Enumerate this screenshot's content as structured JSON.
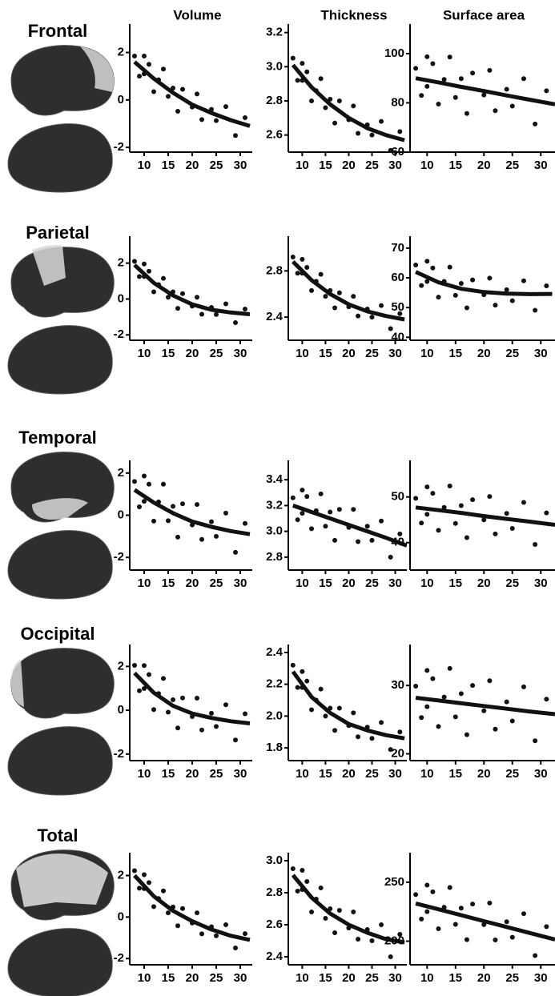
{
  "column_titles": [
    "Volume",
    "Thickness",
    "Surface area"
  ],
  "row_titles": [
    "Frontal",
    "Parietal",
    "Temporal",
    "Occipital",
    "Total"
  ],
  "chart_data": [
    {
      "type": "scatter",
      "color": "#111111",
      "xlim": [
        7,
        32.5
      ],
      "xticks": [
        10,
        15,
        20,
        25,
        30
      ],
      "ylim": [
        -2.2,
        3.2
      ],
      "yticks": [
        -2,
        0,
        2
      ],
      "x": [
        8,
        9,
        10,
        10,
        11,
        12,
        13,
        14,
        15,
        16,
        17,
        18,
        20,
        21,
        22,
        24,
        25,
        27,
        29,
        31
      ],
      "values": [
        1.85,
        1.0,
        1.85,
        1.1,
        1.5,
        0.35,
        0.85,
        1.3,
        0.15,
        0.5,
        -0.48,
        0.45,
        -0.3,
        0.25,
        -0.83,
        -0.4,
        -0.87,
        -0.28,
        -1.5,
        -0.75
      ],
      "fit": {
        "x": [
          8,
          12,
          16,
          20,
          24,
          28,
          32
        ],
        "values": [
          1.6,
          0.9,
          0.3,
          -0.2,
          -0.55,
          -0.85,
          -1.1
        ]
      }
    },
    {
      "type": "scatter",
      "color": "#111111",
      "xlim": [
        7,
        32.5
      ],
      "xticks": [
        10,
        15,
        20,
        25,
        30
      ],
      "ylim": [
        2.5,
        3.25
      ],
      "yticks": [
        2.6,
        2.8,
        {
          "value": 3,
          "label": "3.0"
        },
        3.2
      ],
      "x": [
        8,
        9,
        10,
        10,
        11,
        12,
        13,
        14,
        15,
        16,
        17,
        18,
        20,
        21,
        22,
        24,
        25,
        27,
        29,
        31
      ],
      "values": [
        3.05,
        2.92,
        3.02,
        2.92,
        2.97,
        2.8,
        2.86,
        2.93,
        2.76,
        2.81,
        2.67,
        2.8,
        2.69,
        2.77,
        2.61,
        2.66,
        2.6,
        2.68,
        2.51,
        2.62
      ],
      "fit": {
        "x": [
          8,
          12,
          16,
          20,
          24,
          28,
          32
        ],
        "values": [
          3.01,
          2.88,
          2.78,
          2.7,
          2.64,
          2.6,
          2.57
        ]
      }
    },
    {
      "type": "scatter",
      "color": "#111111",
      "xlim": [
        7,
        32.5
      ],
      "xticks": [
        10,
        15,
        20,
        25,
        30
      ],
      "ylim": [
        60,
        112
      ],
      "yticks": [
        60,
        80,
        100
      ],
      "x": [
        8,
        9,
        10,
        10,
        11,
        12,
        13,
        14,
        15,
        16,
        17,
        18,
        20,
        21,
        22,
        24,
        25,
        27,
        29,
        31
      ],
      "values": [
        94,
        83,
        98.7,
        86.7,
        95.9,
        79.5,
        89.5,
        98.6,
        82.2,
        89.8,
        75.7,
        92.1,
        83.2,
        93.2,
        76.8,
        85.5,
        78.7,
        89.8,
        71.4,
        84.9
      ],
      "fit": {
        "x": [
          8,
          12,
          16,
          20,
          24,
          28,
          32.5
        ],
        "values": [
          90,
          88.3,
          86.5,
          84.8,
          83,
          81.3,
          79.4
        ]
      }
    },
    {
      "type": "scatter",
      "color": "#111111",
      "xlim": [
        7,
        32.5
      ],
      "xticks": [
        10,
        15,
        20,
        25,
        30
      ],
      "ylim": [
        -2.3,
        3.5
      ],
      "yticks": [
        -2,
        0,
        2
      ],
      "x": [
        8,
        9,
        10,
        10,
        11,
        12,
        13,
        14,
        15,
        16,
        17,
        18,
        20,
        21,
        22,
        24,
        25,
        27,
        29,
        31
      ],
      "values": [
        2.1,
        1.25,
        1.95,
        1.25,
        1.55,
        0.4,
        0.8,
        1.15,
        0.1,
        0.4,
        -0.52,
        0.3,
        -0.4,
        0.1,
        -0.85,
        -0.47,
        -0.86,
        -0.27,
        -1.32,
        -0.56
      ],
      "fit": {
        "x": [
          8,
          12,
          16,
          20,
          24,
          28,
          32
        ],
        "values": [
          1.9,
          0.9,
          0.2,
          -0.3,
          -0.6,
          -0.75,
          -0.85
        ]
      }
    },
    {
      "type": "scatter",
      "color": "#111111",
      "xlim": [
        7,
        32.5
      ],
      "xticks": [
        10,
        15,
        20,
        25,
        30
      ],
      "ylim": [
        2.2,
        3.1
      ],
      "yticks": [
        2.4,
        2.8
      ],
      "x": [
        8,
        9,
        10,
        10,
        11,
        12,
        13,
        14,
        15,
        16,
        17,
        18,
        20,
        21,
        22,
        24,
        25,
        27,
        29,
        31
      ],
      "values": [
        2.92,
        2.78,
        2.9,
        2.78,
        2.83,
        2.63,
        2.71,
        2.77,
        2.58,
        2.63,
        2.48,
        2.61,
        2.49,
        2.58,
        2.41,
        2.47,
        2.4,
        2.5,
        2.3,
        2.43
      ],
      "fit": {
        "x": [
          8,
          12,
          16,
          20,
          24,
          28,
          32
        ],
        "values": [
          2.88,
          2.72,
          2.6,
          2.51,
          2.45,
          2.41,
          2.38
        ]
      }
    },
    {
      "type": "scatter",
      "color": "#111111",
      "xlim": [
        7,
        32.5
      ],
      "xticks": [
        10,
        15,
        20,
        25,
        30
      ],
      "ylim": [
        39,
        74
      ],
      "yticks": [
        40,
        50,
        60,
        70
      ],
      "x": [
        8,
        9,
        10,
        10,
        11,
        12,
        13,
        14,
        15,
        16,
        17,
        18,
        20,
        21,
        22,
        24,
        25,
        27,
        29,
        31
      ],
      "values": [
        64.3,
        57.4,
        65.6,
        58.8,
        63.3,
        53.5,
        58.8,
        63.6,
        54.1,
        58.1,
        49.9,
        59.3,
        54.3,
        59.9,
        50.8,
        56,
        52.3,
        59,
        49.1,
        57.3
      ],
      "fit": {
        "x": [
          8,
          12,
          16,
          20,
          24,
          28,
          32
        ],
        "values": [
          62,
          58.5,
          56.3,
          55.2,
          54.7,
          54.5,
          54.6
        ]
      }
    },
    {
      "type": "scatter",
      "color": "#111111",
      "xlim": [
        7,
        32.5
      ],
      "xticks": [
        10,
        15,
        20,
        25,
        30
      ],
      "ylim": [
        -2.6,
        2.6
      ],
      "yticks": [
        -2,
        0,
        2
      ],
      "x": [
        8,
        9,
        10,
        10,
        11,
        12,
        13,
        14,
        15,
        16,
        17,
        18,
        20,
        21,
        22,
        24,
        25,
        27,
        29,
        31
      ],
      "values": [
        1.6,
        0.4,
        1.86,
        0.66,
        1.47,
        -0.28,
        0.63,
        1.47,
        -0.26,
        0.42,
        -1.04,
        0.54,
        -0.46,
        0.51,
        -1.15,
        -0.31,
        -1,
        0.1,
        -1.76,
        -0.39
      ],
      "fit": {
        "x": [
          8,
          12,
          16,
          20,
          24,
          28,
          32
        ],
        "values": [
          1.2,
          0.6,
          0.1,
          -0.3,
          -0.55,
          -0.75,
          -0.9
        ]
      }
    },
    {
      "type": "scatter",
      "color": "#111111",
      "xlim": [
        7,
        32.5
      ],
      "xticks": [
        10,
        15,
        20,
        25,
        30
      ],
      "ylim": [
        2.7,
        3.55
      ],
      "yticks": [
        2.8,
        {
          "value": 3,
          "label": "3.0"
        },
        3.2,
        3.4
      ],
      "x": [
        8,
        9,
        10,
        10,
        11,
        12,
        13,
        14,
        15,
        16,
        17,
        18,
        20,
        21,
        22,
        24,
        25,
        27,
        29,
        31
      ],
      "values": [
        3.26,
        3.09,
        3.32,
        3.14,
        3.27,
        3.02,
        3.16,
        3.29,
        3.04,
        3.15,
        2.93,
        3.17,
        3.03,
        3.17,
        2.92,
        3.04,
        2.93,
        3.08,
        2.8,
        2.98
      ],
      "fit": {
        "x": [
          8,
          12,
          16,
          20,
          24,
          28,
          32.5
        ],
        "values": [
          3.2,
          3.15,
          3.1,
          3.05,
          3,
          2.95,
          2.89
        ]
      }
    },
    {
      "type": "scatter",
      "color": "#111111",
      "xlim": [
        7,
        32.5
      ],
      "xticks": [
        10,
        15,
        20,
        25,
        30
      ],
      "ylim": [
        34,
        58
      ],
      "yticks": [
        40,
        50
      ],
      "x": [
        8,
        9,
        10,
        10,
        11,
        12,
        13,
        14,
        15,
        16,
        17,
        18,
        20,
        21,
        22,
        24,
        25,
        27,
        29,
        31
      ],
      "values": [
        49.7,
        44.3,
        52.2,
        46.2,
        50.8,
        42.7,
        47.7,
        52.4,
        44.2,
        48.1,
        41.1,
        49.4,
        45,
        50.1,
        41.9,
        46.4,
        43.1,
        48.8,
        39.6,
        46.5
      ],
      "fit": {
        "x": [
          8,
          12,
          16,
          20,
          24,
          28,
          32.5
        ],
        "values": [
          47.7,
          47.1,
          46.5,
          45.8,
          45.2,
          44.6,
          43.9
        ]
      }
    },
    {
      "type": "scatter",
      "color": "#111111",
      "xlim": [
        7,
        32.5
      ],
      "xticks": [
        10,
        15,
        20,
        25,
        30
      ],
      "ylim": [
        -2.3,
        3
      ],
      "yticks": [
        -2,
        0,
        2
      ],
      "x": [
        8,
        9,
        10,
        10,
        11,
        12,
        13,
        14,
        15,
        16,
        17,
        18,
        20,
        21,
        22,
        24,
        25,
        27,
        29,
        31
      ],
      "values": [
        2.05,
        0.89,
        2.04,
        0.99,
        1.63,
        0.03,
        0.76,
        1.45,
        -0.09,
        0.48,
        -0.81,
        0.56,
        -0.29,
        0.55,
        -0.9,
        -0.14,
        -0.74,
        0.25,
        -1.36,
        -0.16
      ],
      "fit": {
        "x": [
          8,
          12,
          16,
          20,
          24,
          28,
          32
        ],
        "values": [
          1.7,
          0.8,
          0.2,
          -0.15,
          -0.35,
          -0.5,
          -0.6
        ]
      }
    },
    {
      "type": "scatter",
      "color": "#111111",
      "xlim": [
        7,
        32.5
      ],
      "xticks": [
        10,
        15,
        20,
        25,
        30
      ],
      "ylim": [
        1.72,
        2.45
      ],
      "yticks": [
        1.8,
        {
          "value": 2,
          "label": "2.0"
        },
        2.2,
        2.4
      ],
      "x": [
        8,
        9,
        10,
        10,
        11,
        12,
        13,
        14,
        15,
        16,
        17,
        18,
        20,
        21,
        22,
        24,
        25,
        27,
        29,
        31
      ],
      "values": [
        2.32,
        2.18,
        2.28,
        2.18,
        2.22,
        2.04,
        2.1,
        2.17,
        2,
        2.05,
        1.91,
        2.05,
        1.94,
        2.02,
        1.87,
        1.93,
        1.86,
        1.96,
        1.79,
        1.9
      ],
      "fit": {
        "x": [
          8,
          12,
          16,
          20,
          24,
          28,
          32
        ],
        "values": [
          2.28,
          2.12,
          2.02,
          1.95,
          1.91,
          1.88,
          1.86
        ]
      }
    },
    {
      "type": "scatter",
      "color": "#111111",
      "xlim": [
        7,
        32.5
      ],
      "xticks": [
        10,
        15,
        20,
        25,
        30
      ],
      "ylim": [
        19,
        36
      ],
      "yticks": [
        20,
        30
      ],
      "x": [
        8,
        9,
        10,
        10,
        11,
        12,
        13,
        14,
        15,
        16,
        17,
        18,
        20,
        21,
        22,
        24,
        25,
        27,
        29,
        31
      ],
      "values": [
        29.9,
        25.3,
        32.2,
        26.9,
        31,
        24,
        28.3,
        32.5,
        25.4,
        28.8,
        22.8,
        30,
        26.3,
        30.7,
        23.6,
        27.6,
        24.8,
        29.8,
        21.9,
        28
      ],
      "fit": {
        "x": [
          8,
          12,
          16,
          20,
          24,
          28,
          32.5
        ],
        "values": [
          28.2,
          27.8,
          27.4,
          27,
          26.6,
          26.2,
          25.8
        ]
      }
    },
    {
      "type": "scatter",
      "color": "#111111",
      "xlim": [
        7,
        32.5
      ],
      "xticks": [
        10,
        15,
        20,
        25,
        30
      ],
      "ylim": [
        -2.3,
        3.1
      ],
      "yticks": [
        -2,
        0,
        2
      ],
      "x": [
        8,
        9,
        10,
        10,
        11,
        12,
        13,
        14,
        15,
        16,
        17,
        18,
        20,
        21,
        22,
        24,
        25,
        27,
        29,
        31
      ],
      "values": [
        2.23,
        1.39,
        2.04,
        1.37,
        1.66,
        0.5,
        0.89,
        1.26,
        0.2,
        0.48,
        -0.42,
        0.41,
        -0.29,
        0.2,
        -0.81,
        -0.47,
        -0.9,
        -0.37,
        -1.49,
        -0.8
      ],
      "fit": {
        "x": [
          8,
          12,
          16,
          20,
          24,
          28,
          32
        ],
        "values": [
          2,
          1,
          0.3,
          -0.2,
          -0.6,
          -0.9,
          -1.1
        ]
      }
    },
    {
      "type": "scatter",
      "color": "#111111",
      "xlim": [
        7,
        32.5
      ],
      "xticks": [
        10,
        15,
        20,
        25,
        30
      ],
      "ylim": [
        2.35,
        3.05
      ],
      "yticks": [
        2.4,
        2.6,
        2.8,
        {
          "value": 3,
          "label": "3.0"
        }
      ],
      "x": [
        8,
        9,
        10,
        10,
        11,
        12,
        13,
        14,
        15,
        16,
        17,
        18,
        20,
        21,
        22,
        24,
        25,
        27,
        29,
        31
      ],
      "values": [
        2.95,
        2.81,
        2.94,
        2.82,
        2.87,
        2.68,
        2.76,
        2.83,
        2.64,
        2.7,
        2.55,
        2.69,
        2.58,
        2.68,
        2.51,
        2.57,
        2.5,
        2.6,
        2.4,
        2.54
      ],
      "fit": {
        "x": [
          8,
          12,
          16,
          20,
          24,
          28,
          32
        ],
        "values": [
          2.91,
          2.77,
          2.67,
          2.6,
          2.55,
          2.51,
          2.49
        ]
      }
    },
    {
      "type": "scatter",
      "color": "#111111",
      "xlim": [
        7,
        32.5
      ],
      "xticks": [
        10,
        15,
        20,
        25,
        30
      ],
      "ylim": [
        180,
        275
      ],
      "yticks": [
        200,
        250
      ],
      "x": [
        8,
        9,
        10,
        10,
        11,
        12,
        13,
        14,
        15,
        16,
        17,
        18,
        20,
        21,
        22,
        24,
        25,
        27,
        29,
        31
      ],
      "values": [
        239.5,
        218.8,
        247.5,
        225,
        241.8,
        210.5,
        228.8,
        245.5,
        214.3,
        228,
        201.3,
        231.5,
        214,
        232.3,
        201,
        216.5,
        203.3,
        223.3,
        187.8,
        212.3
      ],
      "fit": {
        "x": [
          8,
          12,
          16,
          20,
          24,
          28,
          32.5
        ],
        "values": [
          232,
          227,
          222,
          217,
          212,
          207,
          201.4
        ]
      }
    }
  ]
}
